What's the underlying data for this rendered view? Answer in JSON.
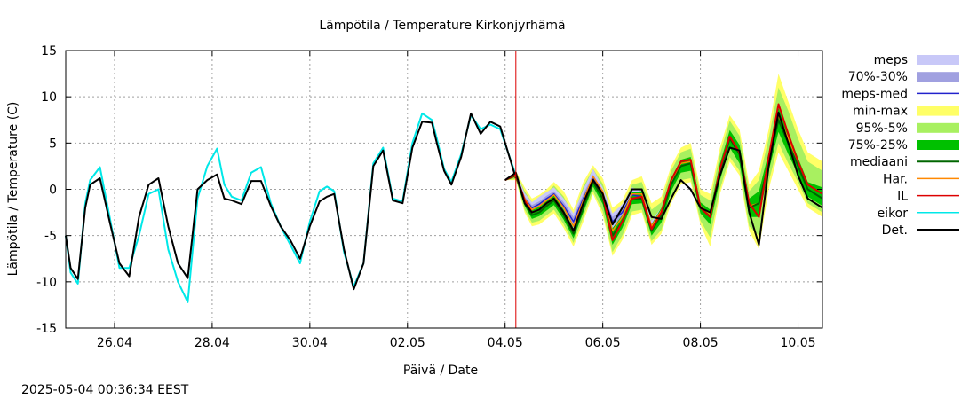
{
  "chart_data": {
    "type": "line",
    "title": "Lämpötila / Temperature   Kirkonjyrhämä",
    "xlabel": "Päivä / Date",
    "ylabel": "Lämpötila / Temperature (C)",
    "xlim": [
      0,
      15.5
    ],
    "ylim": [
      -15,
      15
    ],
    "x_ticks": [
      {
        "value": 1,
        "label": "26.04"
      },
      {
        "value": 3,
        "label": "28.04"
      },
      {
        "value": 5,
        "label": "30.04"
      },
      {
        "value": 7,
        "label": "02.05"
      },
      {
        "value": 9,
        "label": "04.05"
      },
      {
        "value": 11,
        "label": "06.05"
      },
      {
        "value": 13,
        "label": "08.05"
      },
      {
        "value": 15,
        "label": "10.05"
      }
    ],
    "y_ticks": [
      -15,
      -10,
      -5,
      0,
      5,
      10,
      15
    ],
    "grid": true,
    "legend_position": "right",
    "forecast_start": 9.22,
    "colors": {
      "meps": "#c8c8f8",
      "p70_30": "#a0a0e0",
      "meps_med": "#2222cc",
      "min_max": "#ffff66",
      "p95_5": "#a8f060",
      "p75_25": "#00c000",
      "mediaani": "#006600",
      "har": "#ff8800",
      "il": "#dd0000",
      "eikor": "#00e8e8",
      "det": "#000000",
      "now_line": "#dd0000"
    },
    "legend": [
      {
        "key": "meps",
        "label": "meps",
        "kind": "box"
      },
      {
        "key": "p70_30",
        "label": "70%-30%",
        "kind": "box"
      },
      {
        "key": "meps_med",
        "label": "meps-med",
        "kind": "line"
      },
      {
        "key": "min_max",
        "label": "min-max",
        "kind": "box"
      },
      {
        "key": "p95_5",
        "label": "95%-5%",
        "kind": "box"
      },
      {
        "key": "p75_25",
        "label": "75%-25%",
        "kind": "box"
      },
      {
        "key": "mediaani",
        "label": "mediaani",
        "kind": "line"
      },
      {
        "key": "har",
        "label": "Har.",
        "kind": "line"
      },
      {
        "key": "il",
        "label": "IL",
        "kind": "line"
      },
      {
        "key": "eikor",
        "label": "eikor",
        "kind": "line"
      },
      {
        "key": "det",
        "label": "Det.",
        "kind": "line"
      }
    ],
    "observed": {
      "det_x": [
        0,
        0.1,
        0.25,
        0.4,
        0.5,
        0.7,
        0.9,
        1.1,
        1.3,
        1.5,
        1.7,
        1.9,
        2.1,
        2.3,
        2.5,
        2.7,
        2.9,
        3.1,
        3.25,
        3.4,
        3.6,
        3.8,
        4.0,
        4.2,
        4.4,
        4.6,
        4.8,
        5.0,
        5.2,
        5.35,
        5.5,
        5.7,
        5.9,
        6.1,
        6.3,
        6.5,
        6.7,
        6.9,
        7.1,
        7.3,
        7.5,
        7.6,
        7.75,
        7.9,
        8.1,
        8.3,
        8.5,
        8.7,
        8.9,
        9.22
      ],
      "det_y": [
        -5,
        -8.5,
        -9.7,
        -2,
        0.5,
        1.2,
        -3.5,
        -8,
        -9.4,
        -3,
        0.5,
        1.2,
        -4,
        -8,
        -9.6,
        0,
        1.0,
        1.6,
        -1.0,
        -1.2,
        -1.6,
        0.9,
        0.9,
        -1.8,
        -4.0,
        -5.5,
        -7.5,
        -4.0,
        -1.3,
        -0.8,
        -0.5,
        -6.5,
        -10.8,
        -8,
        2.5,
        4.2,
        -1.2,
        -1.5,
        4.5,
        7.3,
        7.2,
        5.0,
        2.0,
        0.5,
        3.5,
        8.2,
        6.0,
        7.3,
        6.8,
        1.2
      ],
      "eikor_x": [
        0,
        0.1,
        0.25,
        0.4,
        0.5,
        0.7,
        0.9,
        1.1,
        1.3,
        1.5,
        1.7,
        1.9,
        2.1,
        2.3,
        2.5,
        2.7,
        2.9,
        3.1,
        3.25,
        3.4,
        3.6,
        3.8,
        4.0,
        4.2,
        4.4,
        4.6,
        4.8,
        5.0,
        5.2,
        5.35,
        5.5,
        5.7,
        5.9,
        6.1,
        6.3,
        6.5,
        6.7,
        6.9,
        7.1,
        7.3,
        7.5,
        7.6,
        7.75,
        7.9,
        8.1,
        8.3,
        8.5,
        8.7,
        8.9,
        9.22
      ],
      "eikor_y": [
        -5,
        -9,
        -10.2,
        -1.5,
        1.0,
        2.4,
        -3,
        -8.5,
        -8.5,
        -5,
        -0.5,
        0.0,
        -6.5,
        -10,
        -12.2,
        -1.0,
        2.5,
        4.4,
        0.5,
        -0.8,
        -1.2,
        1.8,
        2.4,
        -1.5,
        -4.0,
        -6.0,
        -8.0,
        -3.5,
        -0.2,
        0.3,
        -0.2,
        -6.8,
        -10.5,
        -8,
        2.8,
        4.5,
        -1.0,
        -1.3,
        5.0,
        8.2,
        7.5,
        5.5,
        2.2,
        0.8,
        3.8,
        8.0,
        6.5,
        7.0,
        6.5,
        1.5
      ]
    },
    "forecast": {
      "x": [
        9.0,
        9.22,
        9.4,
        9.55,
        9.7,
        9.85,
        10.0,
        10.2,
        10.4,
        10.6,
        10.8,
        11.0,
        11.2,
        11.4,
        11.6,
        11.8,
        12.0,
        12.2,
        12.4,
        12.6,
        12.8,
        13.0,
        13.2,
        13.4,
        13.6,
        13.8,
        14.0,
        14.2,
        14.4,
        14.6,
        14.8,
        15.0,
        15.2,
        15.5
      ],
      "det": [
        1.0,
        1.8,
        -1.5,
        -2.5,
        -2.2,
        -1.5,
        -1.0,
        -2.5,
        -4.5,
        -1.5,
        1.0,
        -0.5,
        -3.8,
        -2.0,
        0.0,
        0.0,
        -3.0,
        -3.2,
        -1.0,
        1.0,
        0.0,
        -2.0,
        -2.5,
        1.5,
        4.5,
        4.2,
        -2.5,
        -6.0,
        2.5,
        8.3,
        5.0,
        1.5,
        -1.0,
        -2.0
      ],
      "mediaani": [
        1.0,
        1.5,
        -1.5,
        -2.8,
        -2.5,
        -1.8,
        -1.2,
        -2.8,
        -4.8,
        -2.0,
        0.8,
        -1.0,
        -5.0,
        -3.5,
        -1.0,
        -1.0,
        -4.5,
        -2.8,
        0.5,
        2.5,
        2.8,
        -2.0,
        -3.0,
        2.0,
        5.5,
        3.8,
        -2.0,
        -1.5,
        3.0,
        7.5,
        5.0,
        2.5,
        0.0,
        -1.0
      ],
      "il": [
        1.0,
        1.6,
        -1.2,
        -2.5,
        -2.2,
        -1.5,
        -1.0,
        -2.5,
        -4.5,
        -1.5,
        1.0,
        -0.5,
        -5.5,
        -3.5,
        -1.0,
        -0.8,
        -4.3,
        -2.5,
        1.0,
        3.0,
        3.2,
        -2.0,
        -3.0,
        2.2,
        5.7,
        4.0,
        -1.5,
        -3.0,
        3.5,
        9.2,
        6.0,
        3.0,
        0.5,
        -0.5
      ],
      "har": [
        1.0,
        1.4,
        -1.0,
        -2.2,
        -1.8,
        -1.2,
        -0.6,
        -2.0,
        -4.0,
        -1.2,
        1.4,
        -0.2,
        -4.5,
        -3.0,
        -0.5,
        -0.5,
        -4.0,
        -2.3,
        0.8,
        2.8,
        3.0,
        -1.8,
        -2.7,
        2.0,
        5.6,
        4.0,
        -1.8,
        -1.5,
        3.2,
        8.0,
        5.5,
        3.0,
        0.5,
        -0.5
      ],
      "meps_med": [
        1.0,
        1.5,
        -1.0,
        -2.0,
        -1.6,
        -1.0,
        -0.5,
        -1.8,
        -3.5,
        -1.0,
        1.2,
        -0.5,
        -3.5,
        -2.5,
        -0.6,
        -0.8,
        -4.0,
        -2.5,
        0.5,
        2.5,
        2.8,
        -2.0,
        -3.0,
        2.0,
        5.5,
        3.8,
        -2.0,
        -1.5,
        3.0,
        7.5,
        5.0,
        2.5,
        0.0,
        -1.0
      ],
      "minmax_lo": [
        1.0,
        1.0,
        -2.5,
        -4.0,
        -3.8,
        -3.2,
        -2.6,
        -4.2,
        -6.2,
        -3.5,
        -0.5,
        -2.8,
        -7.2,
        -5.5,
        -2.8,
        -2.5,
        -6.0,
        -4.8,
        -1.5,
        0.5,
        0.8,
        -3.8,
        -6.2,
        -0.5,
        3.0,
        1.5,
        -4.5,
        -6.5,
        0.0,
        4.0,
        2.0,
        0.0,
        -2.0,
        -3.0
      ],
      "minmax_hi": [
        1.0,
        2.0,
        0.2,
        -1.0,
        -0.6,
        0.0,
        0.8,
        -0.2,
        -2.2,
        0.8,
        2.6,
        1.2,
        -2.0,
        -1.2,
        1.0,
        1.4,
        -1.5,
        -0.8,
        2.5,
        4.5,
        5.0,
        0.0,
        -0.5,
        4.5,
        8.0,
        6.5,
        0.5,
        2.0,
        6.5,
        12.5,
        9.5,
        6.5,
        4.0,
        3.0
      ],
      "p95_lo": [
        1.0,
        1.1,
        -2.2,
        -3.6,
        -3.4,
        -2.8,
        -2.2,
        -3.8,
        -5.8,
        -3.0,
        -0.2,
        -2.4,
        -6.8,
        -5.0,
        -2.4,
        -2.2,
        -5.6,
        -4.4,
        -1.0,
        1.0,
        1.2,
        -3.4,
        -5.2,
        0.0,
        3.5,
        2.0,
        -4.0,
        -5.0,
        0.8,
        5.0,
        2.8,
        0.8,
        -1.5,
        -2.5
      ],
      "p95_hi": [
        1.0,
        1.9,
        -0.2,
        -1.4,
        -1.0,
        -0.4,
        0.4,
        -0.8,
        -2.8,
        0.3,
        2.2,
        0.6,
        -2.8,
        -1.8,
        0.5,
        0.8,
        -2.2,
        -1.4,
        2.0,
        4.0,
        4.4,
        -0.6,
        -1.2,
        3.8,
        7.4,
        5.8,
        -0.2,
        1.0,
        5.5,
        11.0,
        8.5,
        5.5,
        3.0,
        2.0
      ],
      "p75_lo": [
        1.0,
        1.3,
        -1.8,
        -3.2,
        -2.9,
        -2.3,
        -1.7,
        -3.3,
        -5.3,
        -2.5,
        0.3,
        -1.6,
        -6.0,
        -4.2,
        -1.6,
        -1.5,
        -5.0,
        -3.6,
        -0.2,
        1.8,
        2.0,
        -2.6,
        -3.8,
        1.0,
        4.5,
        2.8,
        -3.0,
        -3.0,
        2.0,
        6.2,
        3.8,
        1.6,
        -0.8,
        -1.8
      ],
      "p75_hi": [
        1.0,
        1.7,
        -0.9,
        -2.2,
        -1.9,
        -1.2,
        -0.6,
        -2.2,
        -4.2,
        -1.4,
        1.4,
        -0.2,
        -4.2,
        -2.8,
        -0.3,
        -0.2,
        -3.8,
        -2.0,
        1.2,
        3.2,
        3.5,
        -1.4,
        -2.2,
        2.8,
        6.4,
        4.8,
        -1.0,
        -0.2,
        4.0,
        8.8,
        6.2,
        3.4,
        0.8,
        0.2
      ],
      "meps_lo": [
        1.0,
        1.3,
        -1.5,
        -2.6,
        -2.2,
        -1.6,
        -1.2,
        -2.6,
        -4.4,
        -2.0,
        0.6,
        -1.2,
        -4.8,
        -3.4,
        -1.2,
        -1.2,
        -4.5,
        -3.0,
        0.0,
        2.0,
        2.2,
        -2.4,
        -3.4,
        1.5,
        5.0,
        3.4,
        -2.4,
        -2.0,
        2.6,
        7.0,
        4.6,
        2.0,
        -0.4,
        -1.4
      ],
      "meps_hi": [
        1.0,
        1.8,
        -0.4,
        -1.4,
        -0.8,
        -0.3,
        0.2,
        -1.0,
        -2.6,
        0.0,
        2.2,
        0.2,
        -2.6,
        -1.6,
        0.2,
        -0.2,
        -3.4,
        -2.0,
        1.0,
        3.0,
        3.4,
        -1.6,
        -2.6,
        2.5,
        6.0,
        4.2,
        -1.6,
        -1.0,
        3.4,
        8.0,
        5.4,
        3.0,
        0.4,
        -0.6
      ],
      "p70_lo": [
        1.0,
        1.4,
        -1.2,
        -2.3,
        -1.9,
        -1.3,
        -0.8,
        -2.2,
        -3.9,
        -1.4,
        0.9,
        -0.8,
        -4.0,
        -2.9,
        -0.8,
        -1.0,
        -4.2,
        -2.7,
        0.3,
        2.3,
        2.6,
        -2.2,
        -3.2,
        1.8,
        5.3,
        3.6,
        -2.2,
        -1.7,
        2.8,
        7.3,
        4.8,
        2.3,
        -0.2,
        -1.2
      ],
      "p70_hi": [
        1.0,
        1.6,
        -0.8,
        -1.7,
        -1.3,
        -0.7,
        -0.2,
        -1.4,
        -3.0,
        -0.5,
        1.6,
        -0.2,
        -3.0,
        -2.1,
        -0.3,
        -0.5,
        -3.7,
        -2.2,
        0.8,
        2.8,
        3.1,
        -1.8,
        -2.8,
        2.3,
        5.8,
        4.0,
        -1.8,
        -1.2,
        3.2,
        7.8,
        5.2,
        2.8,
        0.2,
        -0.8
      ]
    },
    "timestamp": "2025-05-04 00:36:34 EEST"
  }
}
